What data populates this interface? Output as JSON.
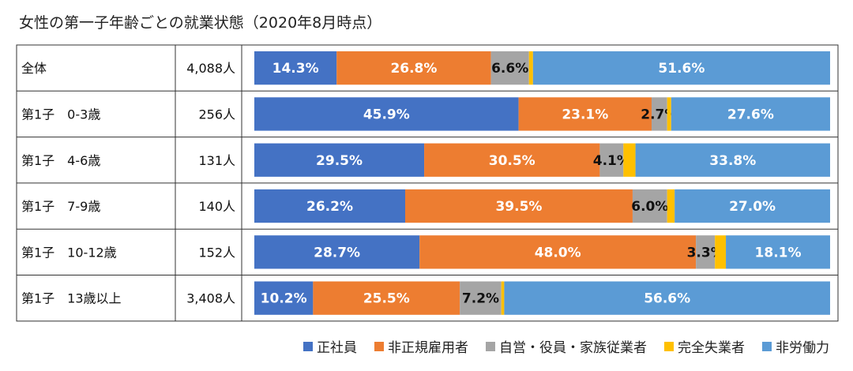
{
  "title": "女性の第一子年齢ごとの就業状態（2020年8月時点）",
  "chart_data": {
    "type": "bar",
    "orientation": "horizontal",
    "stacked": "100%",
    "title": "女性の第一子年齢ごとの就業状態（2020年8月時点）",
    "categories": [
      "全体",
      "第1子　0-3歳",
      "第1子　4-6歳",
      "第1子　7-9歳",
      "第1子　10-12歳",
      "第1子　13歳以上"
    ],
    "counts": [
      "4,088人",
      "256人",
      "131人",
      "140人",
      "152人",
      "3,408人"
    ],
    "series": [
      {
        "name": "正社員",
        "color": "#4472c4",
        "label_color": "#ffffff",
        "values": [
          14.3,
          45.9,
          29.5,
          26.2,
          28.7,
          10.2
        ],
        "labels": [
          "14.3%",
          "45.9%",
          "29.5%",
          "26.2%",
          "28.7%",
          "10.2%"
        ]
      },
      {
        "name": "非正規雇用者",
        "color": "#ed7d31",
        "label_color": "#ffffff",
        "values": [
          26.8,
          23.1,
          30.5,
          39.5,
          48.0,
          25.5
        ],
        "labels": [
          "26.8%",
          "23.1%",
          "30.5%",
          "39.5%",
          "48.0%",
          "25.5%"
        ]
      },
      {
        "name": "自営・役員・家族従業者",
        "color": "#a5a5a5",
        "label_color": "#111111",
        "values": [
          6.6,
          2.7,
          4.1,
          6.0,
          3.3,
          7.2
        ],
        "labels": [
          "6.6%",
          "2.7%",
          "4.1%",
          "6.0%",
          "3.3%",
          "7.2%"
        ]
      },
      {
        "name": "完全失業者",
        "color": "#ffc000",
        "label_color": "#111111",
        "values": [
          0.7,
          0.7,
          2.1,
          1.3,
          1.9,
          0.5
        ],
        "labels": [
          "",
          "",
          "",
          "",
          "",
          ""
        ]
      },
      {
        "name": "非労働力",
        "color": "#5b9bd5",
        "label_color": "#ffffff",
        "values": [
          51.6,
          27.6,
          33.8,
          27.0,
          18.1,
          56.6
        ],
        "labels": [
          "51.6%",
          "27.6%",
          "33.8%",
          "27.0%",
          "18.1%",
          "56.6%"
        ]
      }
    ],
    "xlim": [
      0,
      100
    ],
    "legend_position": "bottom-right"
  }
}
